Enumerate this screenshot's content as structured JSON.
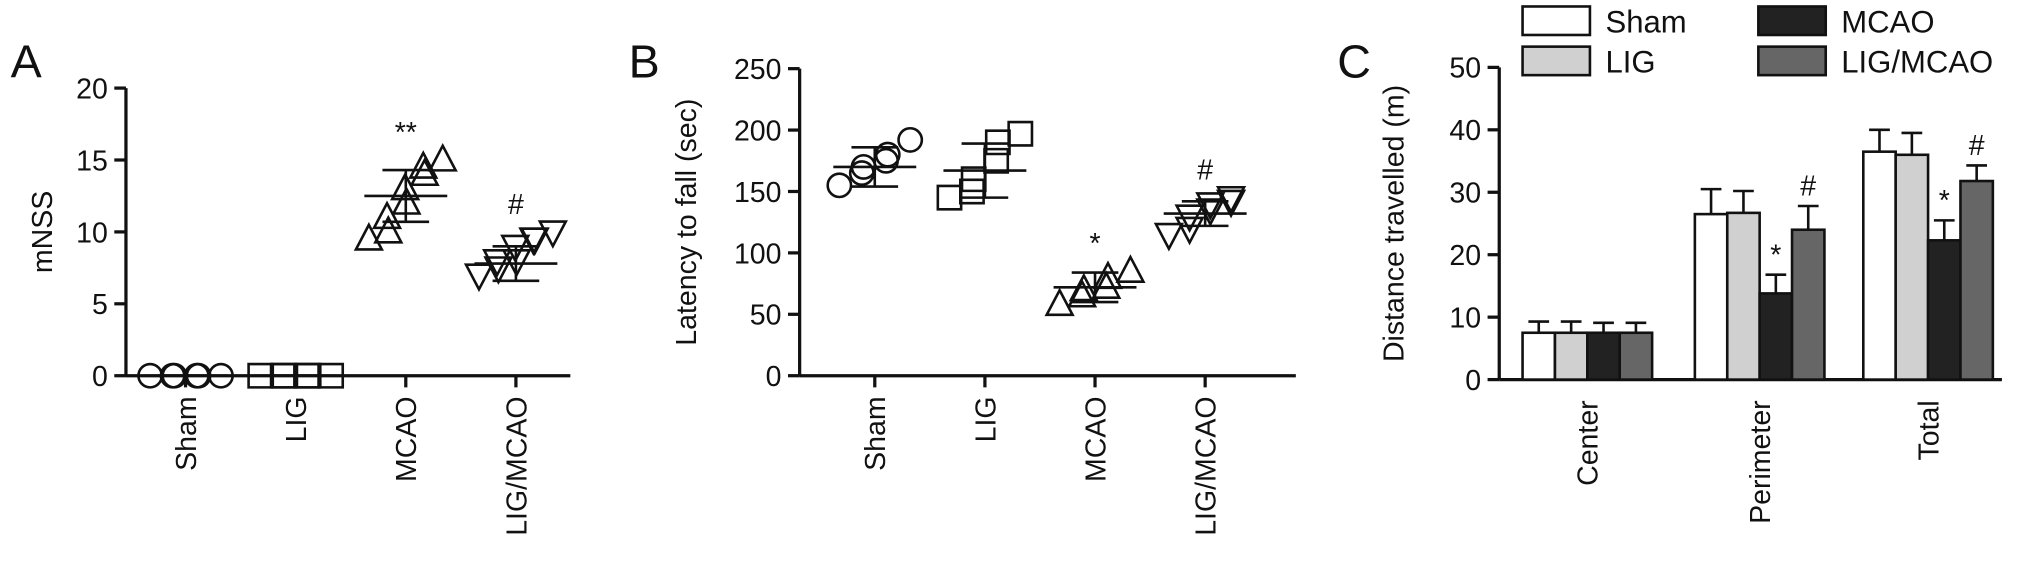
{
  "chart_data": [
    {
      "type": "strip",
      "panel_label": "A",
      "ylabel": "mNSS",
      "categories": [
        "Sham",
        "LIG",
        "MCAO",
        "LIG/MCAO"
      ],
      "markers": [
        "circle",
        "square",
        "triangle-up",
        "triangle-down"
      ],
      "points": [
        [
          0,
          0,
          0,
          0,
          0,
          0
        ],
        [
          0,
          0,
          0,
          0,
          0,
          0
        ],
        [
          9.5,
          10,
          11,
          12,
          13,
          14,
          14.5,
          15
        ],
        [
          7,
          7.5,
          8,
          8,
          9,
          9.5,
          9.5,
          10
        ]
      ],
      "means": [
        0,
        0,
        12.5,
        7.8
      ],
      "sds": [
        0,
        0,
        1.8,
        1.2
      ],
      "annotations": [
        null,
        null,
        "**",
        "#"
      ],
      "ylim": [
        0,
        20
      ],
      "yticks": [
        0,
        5,
        10,
        15,
        20
      ],
      "color": "#111111"
    },
    {
      "type": "strip",
      "panel_label": "B",
      "ylabel": "Latency to fall (sec)",
      "categories": [
        "Sham",
        "LIG",
        "MCAO",
        "LIG/MCAO"
      ],
      "markers": [
        "circle",
        "square",
        "triangle-up",
        "triangle-down"
      ],
      "points": [
        [
          155,
          165,
          170,
          175,
          180,
          192
        ],
        [
          145,
          150,
          160,
          175,
          190,
          197
        ],
        [
          58,
          65,
          70,
          72,
          80,
          85
        ],
        [
          115,
          120,
          130,
          135,
          140,
          142,
          145
        ]
      ],
      "means": [
        170,
        167,
        72,
        132
      ],
      "sds": [
        16,
        22,
        12,
        10
      ],
      "annotations": [
        null,
        null,
        "*",
        "#"
      ],
      "ylim": [
        0,
        250
      ],
      "yticks": [
        0,
        50,
        100,
        150,
        200,
        250
      ],
      "color": "#111111"
    },
    {
      "type": "bar",
      "panel_label": "C",
      "ylabel": "Distance travelled (m)",
      "categories": [
        "Center",
        "Perimeter",
        "Total"
      ],
      "series": [
        {
          "name": "Sham",
          "color": "#ffffff",
          "values": [
            7.5,
            26.5,
            36.5
          ],
          "errors": [
            1.8,
            4,
            3.5
          ],
          "annotations": [
            null,
            null,
            null
          ]
        },
        {
          "name": "LIG",
          "color": "#d0d0d0",
          "values": [
            7.5,
            26.7,
            36
          ],
          "errors": [
            1.8,
            3.5,
            3.5
          ],
          "annotations": [
            null,
            null,
            null
          ]
        },
        {
          "name": "MCAO",
          "color": "#222222",
          "values": [
            7.5,
            13.8,
            22.3
          ],
          "errors": [
            1.6,
            3,
            3.2
          ],
          "annotations": [
            null,
            "*",
            "*"
          ]
        },
        {
          "name": "LIG/MCAO",
          "color": "#666666",
          "values": [
            7.5,
            24,
            31.8
          ],
          "errors": [
            1.6,
            3.8,
            2.5
          ],
          "annotations": [
            null,
            "#",
            "#"
          ]
        }
      ],
      "ylim": [
        0,
        50
      ],
      "yticks": [
        0,
        10,
        20,
        30,
        40,
        50
      ]
    }
  ]
}
